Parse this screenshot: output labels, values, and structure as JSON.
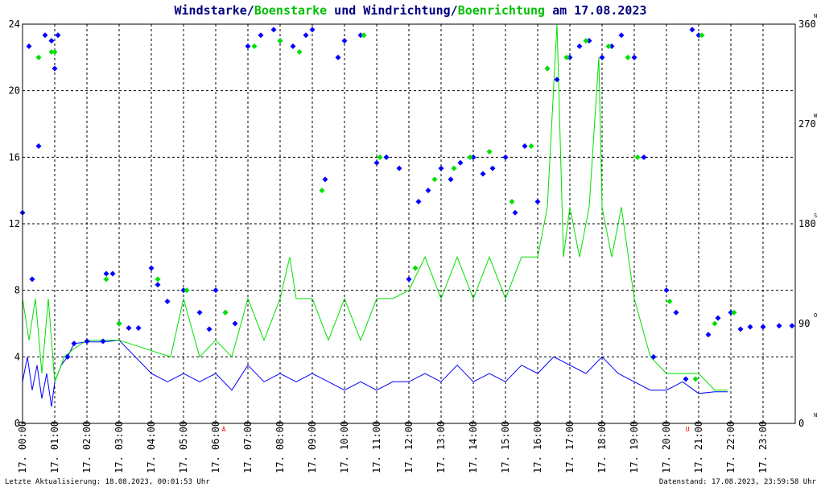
{
  "title": {
    "part1": "Windstarke",
    "sep1": "/",
    "part2": "Boenstarke",
    "part3": " und ",
    "part4": "Windrichtung",
    "sep2": "/",
    "part5": "Boenrichtung",
    "part6": " am 17.08.2023"
  },
  "colors": {
    "wind": "#0000ff",
    "gust": "#00e000",
    "title_dark": "#000080",
    "title_green": "#00c000",
    "grid": "#000000",
    "marker_red": "#ff0000"
  },
  "footer": {
    "left": "Letzte Aktualisierung: 18.08.2023, 00:01:53 Uhr",
    "right": "Datenstand: 17.08.2023, 23:59:58 Uhr"
  },
  "chart_data": {
    "type": "line",
    "x_unit": "hour of day",
    "xlim": [
      0,
      24
    ],
    "ylim_left": [
      0,
      24
    ],
    "ylim_right": [
      0,
      360
    ],
    "yticks_left": [
      "0",
      "4",
      "8",
      "12",
      "16",
      "20",
      "24"
    ],
    "yticks_right": [
      {
        "value": "0",
        "dir": "N"
      },
      {
        "value": "90",
        "dir": "O"
      },
      {
        "value": "180",
        "dir": "S"
      },
      {
        "value": "270",
        "dir": "W"
      },
      {
        "value": "360",
        "dir": "N"
      }
    ],
    "xticks": [
      "17. 00:00",
      "17. 01:00",
      "17. 02:00",
      "17. 03:00",
      "17. 04:00",
      "17. 05:00",
      "17. 06:00",
      "17. 07:00",
      "17. 08:00",
      "17. 09:00",
      "17. 10:00",
      "17. 11:00",
      "17. 12:00",
      "17. 13:00",
      "17. 14:00",
      "17. 15:00",
      "17. 16:00",
      "17. 17:00",
      "17. 18:00",
      "17. 19:00",
      "17. 20:00",
      "17. 21:00",
      "17. 22:00",
      "17. 23:00"
    ],
    "axis_markers": [
      {
        "x": 6.25,
        "label": "A"
      },
      {
        "x": 20.65,
        "label": "U"
      }
    ],
    "grid": true,
    "series": [
      {
        "role": "windstarke",
        "kind": "line",
        "points": [
          [
            0.0,
            2.5
          ],
          [
            0.15,
            4.0
          ],
          [
            0.3,
            2.0
          ],
          [
            0.45,
            3.5
          ],
          [
            0.6,
            1.5
          ],
          [
            0.75,
            3.0
          ],
          [
            0.9,
            1.0
          ],
          [
            1.0,
            2.5
          ],
          [
            1.2,
            3.5
          ],
          [
            1.4,
            4.0
          ],
          [
            1.6,
            4.8
          ],
          [
            2.0,
            4.9
          ],
          [
            2.5,
            4.9
          ],
          [
            3.0,
            5.0
          ],
          [
            3.5,
            4.0
          ],
          [
            4.0,
            3.0
          ],
          [
            4.5,
            2.5
          ],
          [
            5.0,
            3.0
          ],
          [
            5.5,
            2.5
          ],
          [
            6.0,
            3.0
          ],
          [
            6.5,
            2.0
          ],
          [
            7.0,
            3.5
          ],
          [
            7.5,
            2.5
          ],
          [
            8.0,
            3.0
          ],
          [
            8.5,
            2.5
          ],
          [
            9.0,
            3.0
          ],
          [
            9.5,
            2.5
          ],
          [
            10.0,
            2.0
          ],
          [
            10.5,
            2.5
          ],
          [
            11.0,
            2.0
          ],
          [
            11.5,
            2.5
          ],
          [
            12.0,
            2.5
          ],
          [
            12.5,
            3.0
          ],
          [
            13.0,
            2.5
          ],
          [
            13.5,
            3.5
          ],
          [
            14.0,
            2.5
          ],
          [
            14.5,
            3.0
          ],
          [
            15.0,
            2.5
          ],
          [
            15.5,
            3.5
          ],
          [
            16.0,
            3.0
          ],
          [
            16.5,
            4.0
          ],
          [
            17.0,
            3.5
          ],
          [
            17.5,
            3.0
          ],
          [
            18.0,
            4.0
          ],
          [
            18.5,
            3.0
          ],
          [
            19.0,
            2.5
          ],
          [
            19.5,
            2.0
          ],
          [
            20.0,
            2.0
          ],
          [
            20.5,
            2.5
          ],
          [
            21.0,
            1.8
          ],
          [
            21.5,
            1.9
          ],
          [
            21.9,
            1.9
          ]
        ]
      },
      {
        "role": "boenstarke",
        "kind": "line",
        "points": [
          [
            0.0,
            7.5
          ],
          [
            0.2,
            5.0
          ],
          [
            0.4,
            7.5
          ],
          [
            0.6,
            3.0
          ],
          [
            0.8,
            7.5
          ],
          [
            1.0,
            2.5
          ],
          [
            1.3,
            4.0
          ],
          [
            1.6,
            4.5
          ],
          [
            2.0,
            5.0
          ],
          [
            2.5,
            5.0
          ],
          [
            3.0,
            5.0
          ],
          [
            4.6,
            4.0
          ],
          [
            5.0,
            7.5
          ],
          [
            5.5,
            4.0
          ],
          [
            6.0,
            5.0
          ],
          [
            6.5,
            4.0
          ],
          [
            7.0,
            7.5
          ],
          [
            7.5,
            5.0
          ],
          [
            8.0,
            7.5
          ],
          [
            8.3,
            10.0
          ],
          [
            8.5,
            7.5
          ],
          [
            9.0,
            7.5
          ],
          [
            9.5,
            5.0
          ],
          [
            10.0,
            7.5
          ],
          [
            10.5,
            5.0
          ],
          [
            11.0,
            7.5
          ],
          [
            11.5,
            7.5
          ],
          [
            12.0,
            8.0
          ],
          [
            12.5,
            10.0
          ],
          [
            13.0,
            7.5
          ],
          [
            13.5,
            10.0
          ],
          [
            14.0,
            7.5
          ],
          [
            14.5,
            10.0
          ],
          [
            15.0,
            7.5
          ],
          [
            15.5,
            10.0
          ],
          [
            16.0,
            10.0
          ],
          [
            16.3,
            13.0
          ],
          [
            16.6,
            24.0
          ],
          [
            16.8,
            10.0
          ],
          [
            17.0,
            13.0
          ],
          [
            17.3,
            10.0
          ],
          [
            17.6,
            13.0
          ],
          [
            17.9,
            22.0
          ],
          [
            18.0,
            13.0
          ],
          [
            18.3,
            10.0
          ],
          [
            18.6,
            13.0
          ],
          [
            19.0,
            7.5
          ],
          [
            19.5,
            4.0
          ],
          [
            20.0,
            3.0
          ],
          [
            20.5,
            3.0
          ],
          [
            21.0,
            3.0
          ],
          [
            21.5,
            2.0
          ],
          [
            21.9,
            2.0
          ]
        ]
      },
      {
        "role": "windrichtung",
        "kind": "scatter",
        "points": [
          [
            0.0,
            190
          ],
          [
            0.2,
            340
          ],
          [
            0.3,
            130
          ],
          [
            0.5,
            250
          ],
          [
            0.7,
            350
          ],
          [
            0.9,
            345
          ],
          [
            1.0,
            320
          ],
          [
            1.1,
            350
          ],
          [
            1.4,
            60
          ],
          [
            1.6,
            72
          ],
          [
            2.0,
            74
          ],
          [
            2.5,
            74
          ],
          [
            2.6,
            135
          ],
          [
            2.8,
            135
          ],
          [
            3.0,
            90
          ],
          [
            3.3,
            86
          ],
          [
            3.6,
            86
          ],
          [
            4.0,
            140
          ],
          [
            4.2,
            125
          ],
          [
            4.5,
            110
          ],
          [
            5.0,
            120
          ],
          [
            5.5,
            100
          ],
          [
            5.8,
            85
          ],
          [
            6.0,
            120
          ],
          [
            6.3,
            100
          ],
          [
            6.6,
            90
          ],
          [
            7.0,
            340
          ],
          [
            7.4,
            350
          ],
          [
            7.8,
            355
          ],
          [
            8.0,
            345
          ],
          [
            8.4,
            340
          ],
          [
            8.8,
            350
          ],
          [
            9.0,
            355
          ],
          [
            9.4,
            220
          ],
          [
            9.8,
            330
          ],
          [
            10.0,
            345
          ],
          [
            10.5,
            350
          ],
          [
            11.0,
            235
          ],
          [
            11.3,
            240
          ],
          [
            11.7,
            230
          ],
          [
            12.0,
            130
          ],
          [
            12.3,
            200
          ],
          [
            12.6,
            210
          ],
          [
            13.0,
            230
          ],
          [
            13.3,
            220
          ],
          [
            13.6,
            235
          ],
          [
            14.0,
            240
          ],
          [
            14.3,
            225
          ],
          [
            14.6,
            230
          ],
          [
            15.0,
            240
          ],
          [
            15.3,
            190
          ],
          [
            15.6,
            250
          ],
          [
            16.0,
            200
          ],
          [
            16.3,
            320
          ],
          [
            16.6,
            310
          ],
          [
            17.0,
            330
          ],
          [
            17.3,
            340
          ],
          [
            17.6,
            345
          ],
          [
            18.0,
            330
          ],
          [
            18.3,
            340
          ],
          [
            18.6,
            350
          ],
          [
            19.0,
            330
          ],
          [
            19.3,
            240
          ],
          [
            19.6,
            60
          ],
          [
            20.0,
            120
          ],
          [
            20.3,
            100
          ],
          [
            20.6,
            40
          ],
          [
            20.8,
            355
          ],
          [
            21.0,
            350
          ],
          [
            21.3,
            80
          ],
          [
            21.6,
            95
          ],
          [
            22.0,
            100
          ],
          [
            22.3,
            85
          ],
          [
            22.6,
            87
          ],
          [
            23.0,
            87
          ],
          [
            23.5,
            88
          ],
          [
            23.9,
            88
          ]
        ]
      },
      {
        "role": "boenrichtung",
        "kind": "scatter",
        "points": [
          [
            0.5,
            330
          ],
          [
            0.9,
            335
          ],
          [
            1.0,
            335
          ],
          [
            2.6,
            130
          ],
          [
            3.0,
            90
          ],
          [
            4.2,
            130
          ],
          [
            5.1,
            120
          ],
          [
            6.3,
            100
          ],
          [
            7.2,
            340
          ],
          [
            8.0,
            345
          ],
          [
            8.6,
            335
          ],
          [
            9.3,
            210
          ],
          [
            10.6,
            350
          ],
          [
            11.1,
            240
          ],
          [
            12.2,
            140
          ],
          [
            12.8,
            220
          ],
          [
            13.4,
            230
          ],
          [
            13.9,
            240
          ],
          [
            14.5,
            245
          ],
          [
            15.2,
            200
          ],
          [
            15.8,
            250
          ],
          [
            16.3,
            320
          ],
          [
            16.9,
            330
          ],
          [
            17.5,
            345
          ],
          [
            18.2,
            340
          ],
          [
            18.8,
            330
          ],
          [
            19.1,
            240
          ],
          [
            20.1,
            110
          ],
          [
            20.9,
            40
          ],
          [
            21.1,
            350
          ],
          [
            21.5,
            90
          ],
          [
            22.1,
            100
          ]
        ]
      }
    ]
  }
}
